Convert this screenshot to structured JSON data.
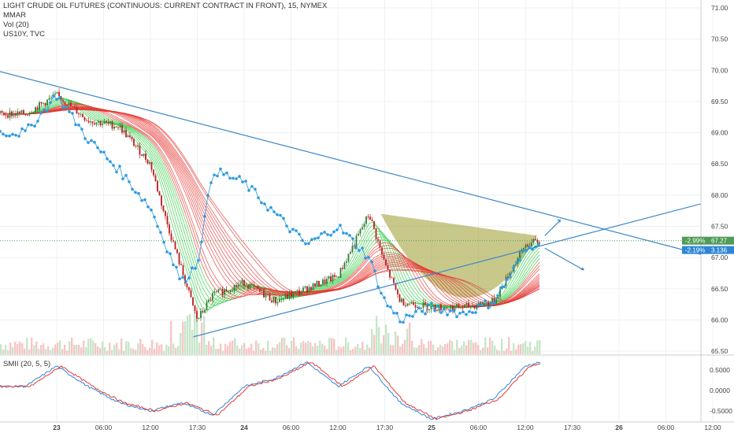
{
  "legend": {
    "title": "LIGHT CRUDE OIL FUTURES (CONTINUOUS: CURRENT CONTRACT IN FRONT), 15, NYMEX",
    "line2": "MMAR",
    "line3": "Vol (20)",
    "line4": "US10Y, TVC"
  },
  "sub_pane": {
    "label": "SMII (20, 5, 5)"
  },
  "price_axis": {
    "ticks": [
      "71.00",
      "70.50",
      "70.00",
      "69.50",
      "69.00",
      "68.50",
      "68.00",
      "67.50",
      "67.00",
      "66.50",
      "66.00",
      "65.50"
    ],
    "badges": [
      {
        "left": "-2.99%",
        "right": "67.27",
        "color": "#4f9b57"
      },
      {
        "left": "-2.19%",
        "right": "3.136",
        "color": "#2f86d6"
      }
    ]
  },
  "smii_axis": {
    "ticks": [
      "0.5000",
      "0.0000",
      "-0.5000"
    ]
  },
  "time_axis": {
    "ticks": [
      "23",
      "06:00",
      "12:00",
      "17:30",
      "24",
      "06:00",
      "12:00",
      "17:30",
      "25",
      "06:00",
      "12:00",
      "17:30",
      "26",
      "06:00",
      "12:00"
    ],
    "bold": [
      "23",
      "24",
      "25",
      "26"
    ]
  },
  "colors": {
    "up_candle": "#2e7d32",
    "down_candle": "#b71c1c",
    "trendline": "#3d87c7",
    "us10y": "#2f9ae0",
    "ribbon_fast": "#2ecc40",
    "ribbon_slow": "#e53935",
    "cup_fill": "#9a9a2a",
    "volume_up": "#c8e6c9",
    "volume_down": "#f7c6c6",
    "smii_fast": "#2f86d6",
    "smii_slow": "#e53935"
  },
  "chart_data": {
    "type": "line",
    "series": [
      {
        "name": "LIGHT CRUDE OIL FUTURES (CONTINUOUS: CURRENT CONTRACT IN FRONT), 15, NYMEX",
        "x": [
          "22 20:00",
          "23 00:00",
          "23 04:00",
          "23 08:00",
          "23 12:00",
          "23 14:00",
          "23 16:00",
          "23 18:00",
          "23 20:00",
          "24 00:00",
          "24 04:00",
          "24 08:00",
          "24 12:00",
          "24 16:00",
          "24 18:00",
          "24 20:00",
          "25 00:00",
          "25 04:00",
          "25 08:00",
          "25 12:00",
          "25 14:00"
        ],
        "values": [
          69.3,
          69.6,
          69.2,
          69.1,
          68.5,
          67.6,
          66.8,
          66.0,
          66.4,
          66.6,
          66.3,
          66.5,
          66.7,
          67.7,
          66.9,
          66.3,
          66.2,
          66.2,
          66.3,
          67.2,
          67.27
        ]
      },
      {
        "name": "US10Y, TVC",
        "x": [
          "22 20:00",
          "23 00:00",
          "23 04:00",
          "23 08:00",
          "23 12:00",
          "23 14:00",
          "23 16:00",
          "23 18:00",
          "23 20:00",
          "24 00:00",
          "24 04:00",
          "24 08:00",
          "24 12:00",
          "24 16:00",
          "24 18:00",
          "24 20:00",
          "25 00:00",
          "25 04:00",
          "25 08:00",
          "25 12:00",
          "25 14:00"
        ],
        "values": [
          69.0,
          69.6,
          68.9,
          68.4,
          67.8,
          67.2,
          66.6,
          66.9,
          68.4,
          68.2,
          67.7,
          67.2,
          67.5,
          67.0,
          66.3,
          66.0,
          66.2,
          66.1,
          66.3,
          67.1,
          67.3
        ]
      }
    ],
    "smii": {
      "name": "SMII (20, 5, 5)",
      "x": [
        "22 20:00",
        "23 00:00",
        "23 04:00",
        "23 08:00",
        "23 12:00",
        "23 16:00",
        "23 20:00",
        "24 00:00",
        "24 04:00",
        "24 08:00",
        "24 12:00",
        "24 16:00",
        "24 20:00",
        "25 00:00",
        "25 04:00",
        "25 08:00",
        "25 12:00",
        "25 14:00"
      ],
      "values": [
        0.1,
        0.6,
        0.1,
        -0.3,
        -0.5,
        -0.3,
        -0.6,
        0.1,
        0.3,
        0.7,
        0.1,
        0.6,
        -0.3,
        -0.7,
        -0.5,
        -0.2,
        0.6,
        0.7
      ],
      "ylim": [
        -0.75,
        0.85
      ]
    },
    "ylim": [
      65.45,
      71.05
    ],
    "title": "LIGHT CRUDE OIL FUTURES (CONTINUOUS: CURRENT CONTRACT IN FRONT), 15, NYMEX",
    "grid": true,
    "legend_position": "top-left"
  }
}
